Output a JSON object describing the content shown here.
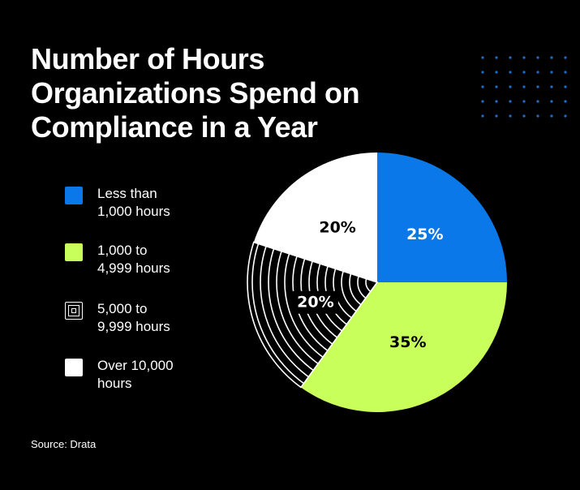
{
  "title_lines": [
    "Number of Hours",
    "Organizations Spend on",
    "Compliance in a Year"
  ],
  "legend": [
    {
      "lines": [
        "Less than",
        "1,000 hours"
      ],
      "swatch": "blue-square-icon"
    },
    {
      "lines": [
        "1,000 to",
        "4,999 hours"
      ],
      "swatch": "lime-square-icon"
    },
    {
      "lines": [
        "5,000 to",
        "9,999 hours"
      ],
      "swatch": "concentric-pattern-square-icon"
    },
    {
      "lines": [
        "Over 10,000",
        "hours"
      ],
      "swatch": "white-square-icon"
    }
  ],
  "source": "Source: Drata",
  "colors": {
    "background": "#000000",
    "blue": "#0a78e8",
    "lime": "#c8ff5a",
    "white": "#ffffff",
    "pattern": "#000000",
    "dots": "#1f6fc9"
  },
  "chart_data": {
    "type": "pie",
    "title": "Number of Hours Organizations Spend on Compliance in a Year",
    "slices": [
      {
        "label": "Less than 1,000 hours",
        "value": 25,
        "display": "25%",
        "color": "#0a78e8",
        "text_color": "#ffffff"
      },
      {
        "label": "1,000 to 4,999 hours",
        "value": 35,
        "display": "35%",
        "color": "#c8ff5a",
        "text_color": "#000000"
      },
      {
        "label": "5,000 to 9,999 hours",
        "value": 20,
        "display": "20%",
        "color": "#000000",
        "pattern": "concentric-arcs",
        "text_color": "#ffffff"
      },
      {
        "label": "Over 10,000 hours",
        "value": 20,
        "display": "20%",
        "color": "#ffffff",
        "text_color": "#000000"
      }
    ],
    "start_angle_deg": 0,
    "direction": "clockwise",
    "legend_position": "left"
  }
}
